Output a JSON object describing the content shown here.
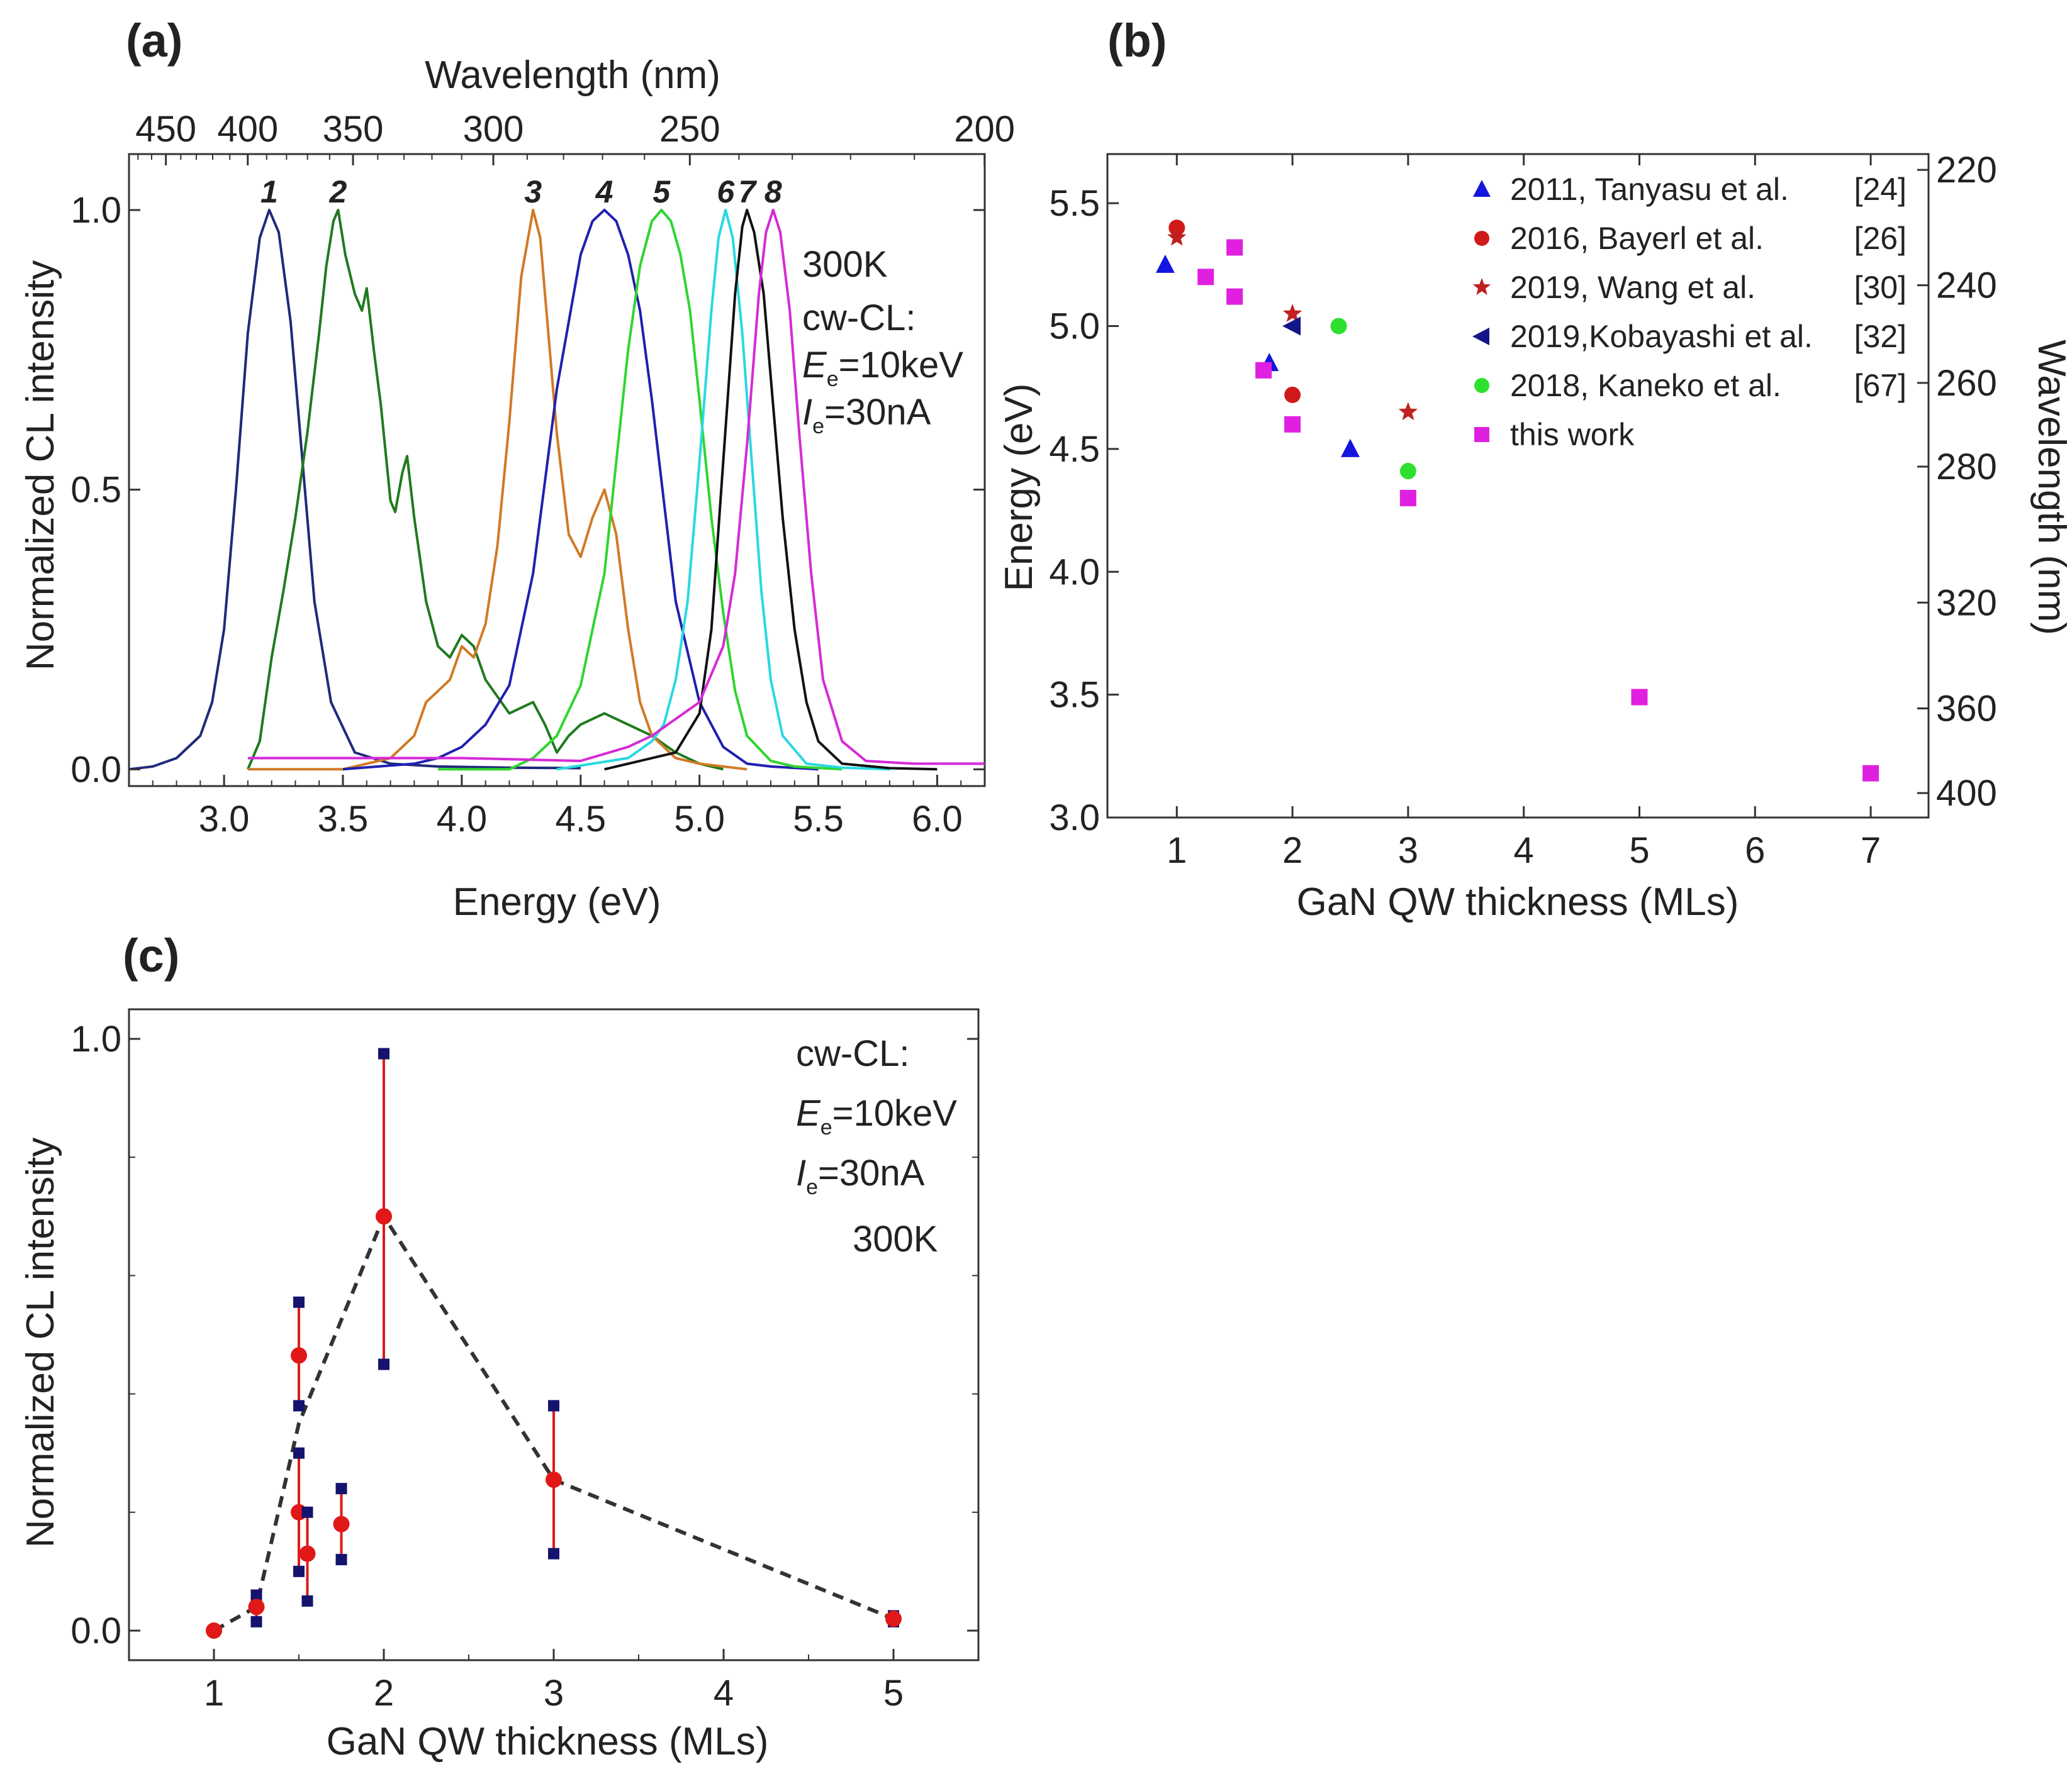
{
  "chart_data": [
    {
      "panel": "(a)",
      "type": "line",
      "xlabel": "Energy (eV)",
      "ylabel": "Normalized CL intensity",
      "top_xlabel": "Wavelength (nm)",
      "xlim": [
        2.6,
        6.2
      ],
      "ylim": [
        -0.03,
        1.1
      ],
      "xticks": [
        "3.0",
        "3.5",
        "4.0",
        "4.5",
        "5.0",
        "5.5",
        "6.0"
      ],
      "yticks": [
        "0.0",
        "0.5",
        "1.0"
      ],
      "top_ticks": [
        "450",
        "400",
        "350",
        "300",
        "250",
        "200"
      ],
      "top_tick_nm": [
        450,
        400,
        350,
        300,
        250,
        200
      ],
      "annotation": [
        "300K",
        "cw-CL:",
        "E",
        "e",
        "=10keV",
        "I",
        "e",
        "=30nA"
      ],
      "series": [
        {
          "name": "1",
          "color": "#1f2a7a",
          "x": [
            2.6,
            2.7,
            2.8,
            2.9,
            2.95,
            3.0,
            3.05,
            3.1,
            3.15,
            3.19,
            3.23,
            3.28,
            3.33,
            3.38,
            3.45,
            3.55,
            3.7,
            3.9,
            4.2,
            4.5
          ],
          "y": [
            0.0,
            0.005,
            0.02,
            0.06,
            0.12,
            0.25,
            0.5,
            0.78,
            0.95,
            1.0,
            0.96,
            0.8,
            0.55,
            0.3,
            0.12,
            0.03,
            0.01,
            0.005,
            0.003,
            0.002
          ]
        },
        {
          "name": "2",
          "color": "#1f7a1f",
          "x": [
            3.1,
            3.15,
            3.2,
            3.25,
            3.3,
            3.35,
            3.4,
            3.43,
            3.46,
            3.48,
            3.51,
            3.55,
            3.58,
            3.6,
            3.63,
            3.66,
            3.7,
            3.72,
            3.75,
            3.77,
            3.8,
            3.85,
            3.9,
            3.95,
            4.0,
            4.05,
            4.1,
            4.2,
            4.3,
            4.35,
            4.4,
            4.45,
            4.5,
            4.55,
            4.6,
            4.65,
            4.7,
            4.8,
            4.9,
            5.0,
            5.1
          ],
          "y": [
            0.0,
            0.05,
            0.2,
            0.32,
            0.45,
            0.6,
            0.78,
            0.9,
            0.98,
            1.0,
            0.92,
            0.85,
            0.82,
            0.86,
            0.75,
            0.65,
            0.48,
            0.46,
            0.53,
            0.56,
            0.45,
            0.3,
            0.22,
            0.2,
            0.24,
            0.22,
            0.16,
            0.1,
            0.12,
            0.08,
            0.03,
            0.06,
            0.08,
            0.09,
            0.1,
            0.09,
            0.08,
            0.06,
            0.03,
            0.01,
            0.0
          ]
        },
        {
          "name": "3",
          "color": "#d07a25",
          "x": [
            3.1,
            3.5,
            3.7,
            3.8,
            3.85,
            3.9,
            3.95,
            4.0,
            4.05,
            4.1,
            4.15,
            4.2,
            4.25,
            4.3,
            4.33,
            4.36,
            4.4,
            4.45,
            4.5,
            4.55,
            4.6,
            4.65,
            4.7,
            4.75,
            4.8,
            4.9,
            5.0,
            5.2
          ],
          "y": [
            0.0,
            0.0,
            0.02,
            0.06,
            0.12,
            0.14,
            0.16,
            0.22,
            0.2,
            0.26,
            0.4,
            0.62,
            0.88,
            1.0,
            0.95,
            0.8,
            0.6,
            0.42,
            0.38,
            0.45,
            0.5,
            0.42,
            0.25,
            0.12,
            0.06,
            0.02,
            0.01,
            0.0
          ]
        },
        {
          "name": "4",
          "color": "#2020b0",
          "x": [
            3.5,
            3.8,
            3.9,
            4.0,
            4.1,
            4.2,
            4.3,
            4.4,
            4.5,
            4.55,
            4.6,
            4.65,
            4.7,
            4.75,
            4.8,
            4.85,
            4.9,
            5.0,
            5.1,
            5.2,
            5.3,
            5.5
          ],
          "y": [
            0.0,
            0.01,
            0.02,
            0.04,
            0.08,
            0.15,
            0.35,
            0.68,
            0.92,
            0.98,
            1.0,
            0.98,
            0.92,
            0.82,
            0.66,
            0.48,
            0.3,
            0.12,
            0.04,
            0.01,
            0.005,
            0.0
          ]
        },
        {
          "name": "5",
          "color": "#2ed62e",
          "x": [
            3.9,
            4.2,
            4.3,
            4.4,
            4.5,
            4.6,
            4.65,
            4.7,
            4.75,
            4.8,
            4.84,
            4.88,
            4.92,
            4.96,
            5.0,
            5.05,
            5.1,
            5.15,
            5.2,
            5.3,
            5.4,
            5.6
          ],
          "y": [
            0.0,
            0.0,
            0.02,
            0.06,
            0.15,
            0.35,
            0.55,
            0.75,
            0.9,
            0.98,
            1.0,
            0.98,
            0.92,
            0.82,
            0.66,
            0.45,
            0.28,
            0.14,
            0.06,
            0.015,
            0.005,
            0.0
          ]
        },
        {
          "name": "6",
          "color": "#2ad8e0",
          "x": [
            4.4,
            4.7,
            4.8,
            4.85,
            4.9,
            4.95,
            5.0,
            5.05,
            5.08,
            5.11,
            5.14,
            5.18,
            5.22,
            5.26,
            5.3,
            5.35,
            5.45,
            5.6,
            5.8
          ],
          "y": [
            0.0,
            0.02,
            0.05,
            0.08,
            0.16,
            0.3,
            0.55,
            0.82,
            0.95,
            1.0,
            0.95,
            0.78,
            0.55,
            0.32,
            0.16,
            0.06,
            0.01,
            0.003,
            0.0
          ]
        },
        {
          "name": "7",
          "color": "#111111",
          "x": [
            4.6,
            4.9,
            5.0,
            5.05,
            5.1,
            5.15,
            5.18,
            5.2,
            5.23,
            5.27,
            5.3,
            5.35,
            5.4,
            5.45,
            5.5,
            5.6,
            5.8,
            6.0
          ],
          "y": [
            0.0,
            0.03,
            0.1,
            0.25,
            0.55,
            0.85,
            0.97,
            1.0,
            0.96,
            0.85,
            0.7,
            0.45,
            0.25,
            0.12,
            0.05,
            0.01,
            0.002,
            0.0
          ]
        },
        {
          "name": "8",
          "color": "#d62ad6",
          "x": [
            3.1,
            3.5,
            4.0,
            4.5,
            4.7,
            4.8,
            4.9,
            5.0,
            5.1,
            5.15,
            5.2,
            5.25,
            5.28,
            5.31,
            5.34,
            5.38,
            5.42,
            5.47,
            5.52,
            5.6,
            5.7,
            5.9,
            6.2
          ],
          "y": [
            0.02,
            0.02,
            0.02,
            0.015,
            0.04,
            0.06,
            0.09,
            0.12,
            0.22,
            0.35,
            0.58,
            0.85,
            0.96,
            1.0,
            0.96,
            0.82,
            0.6,
            0.35,
            0.16,
            0.05,
            0.015,
            0.01,
            0.01
          ]
        }
      ]
    },
    {
      "panel": "(b)",
      "type": "scatter",
      "xlabel": "GaN QW thickness (MLs)",
      "ylabel": "Energy (eV)",
      "right_ylabel": "Wavelength (nm)",
      "xlim": [
        0.4,
        7.5
      ],
      "ylim": [
        3.0,
        5.7
      ],
      "xticks": [
        "1",
        "2",
        "3",
        "4",
        "5",
        "6",
        "7"
      ],
      "yticks": [
        "3.0",
        "3.5",
        "4.0",
        "4.5",
        "5.0",
        "5.5"
      ],
      "right_ticks": [
        "220",
        "240",
        "260",
        "280",
        "320",
        "360",
        "400"
      ],
      "right_tick_nm": [
        220,
        240,
        260,
        280,
        320,
        360,
        400
      ],
      "series": [
        {
          "name": "2011, Tanyasu et al.",
          "ref": "[24]",
          "marker": "triangle-up",
          "color": "#1515e0",
          "x": [
            0.9,
            1.8,
            2.5
          ],
          "y": [
            5.25,
            4.85,
            4.5
          ]
        },
        {
          "name": "2016, Bayerl et al.",
          "ref": "[26]",
          "marker": "circle",
          "color": "#d01a1a",
          "x": [
            1.0,
            2.0
          ],
          "y": [
            5.4,
            4.72
          ]
        },
        {
          "name": "2019, Wang et al.",
          "ref": "[30]",
          "marker": "star",
          "color": "#c02020",
          "x": [
            1.0,
            2.0,
            3.0
          ],
          "y": [
            5.36,
            5.05,
            4.65
          ]
        },
        {
          "name": "2019,Kobayashi et al.",
          "ref": "[32]",
          "marker": "triangle-left",
          "color": "#15158a",
          "x": [
            2.0
          ],
          "y": [
            5.0
          ]
        },
        {
          "name": "2018, Kaneko et al.",
          "ref": "[67]",
          "marker": "circle",
          "color": "#2ee02e",
          "x": [
            2.4,
            3.0
          ],
          "y": [
            5.0,
            4.41
          ]
        },
        {
          "name": "this work",
          "ref": "",
          "marker": "square",
          "color": "#e020e0",
          "x": [
            1.25,
            1.5,
            1.5,
            1.75,
            2.0,
            3.0,
            5.0,
            7.0
          ],
          "y": [
            5.2,
            5.32,
            5.12,
            4.82,
            4.6,
            4.3,
            3.49,
            3.18
          ]
        }
      ]
    },
    {
      "panel": "(c)",
      "type": "scatter",
      "xlabel": "GaN QW thickness (MLs)",
      "ylabel": "Normalized  CL intensity",
      "xlim": [
        0.5,
        5.5
      ],
      "ylim": [
        -0.05,
        1.05
      ],
      "xticks": [
        "1",
        "2",
        "3",
        "4",
        "5"
      ],
      "yticks": [
        "0.0",
        "1.0"
      ],
      "annotation": [
        "cw-CL:",
        "E",
        "e",
        "=10keV",
        "I",
        "e",
        "=30nA",
        "300K"
      ],
      "points": [
        {
          "x": 1.0,
          "y": 0.0,
          "low": 0.0,
          "high": 0.0
        },
        {
          "x": 1.25,
          "y": 0.04,
          "low": 0.015,
          "high": 0.06
        },
        {
          "x": 1.5,
          "y": 0.465,
          "low": 0.38,
          "high": 0.555
        },
        {
          "x": 1.5,
          "y": 0.2,
          "low": 0.1,
          "high": 0.3
        },
        {
          "x": 1.55,
          "y": 0.13,
          "low": 0.05,
          "high": 0.2
        },
        {
          "x": 1.75,
          "y": 0.18,
          "low": 0.12,
          "high": 0.24
        },
        {
          "x": 2.0,
          "y": 0.7,
          "low": 0.45,
          "high": 0.975
        },
        {
          "x": 3.0,
          "y": 0.255,
          "low": 0.13,
          "high": 0.38
        },
        {
          "x": 5.0,
          "y": 0.02,
          "low": 0.015,
          "high": 0.025
        }
      ],
      "trend": {
        "x": [
          1.0,
          1.25,
          1.5,
          2.0,
          3.0,
          5.0
        ],
        "y": [
          0.0,
          0.04,
          0.35,
          0.7,
          0.255,
          0.02
        ]
      }
    }
  ]
}
